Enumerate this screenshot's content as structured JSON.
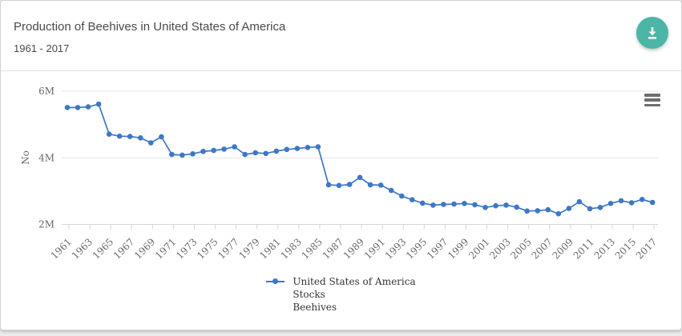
{
  "header": {
    "title": "Production of Beehives in United States of America",
    "subtitle": "1961 - 2017"
  },
  "legend": {
    "lines": [
      "United States of America",
      "Stocks",
      "Beehives"
    ]
  },
  "chart_data": {
    "type": "line",
    "title": "Production of Beehives in United States of America",
    "subtitle": "1961 - 2017",
    "ylabel": "No",
    "xlabel": "",
    "legend_position": "bottom",
    "grid": true,
    "marker": "circle",
    "ylim": [
      2000000,
      6200000
    ],
    "yticks": [
      {
        "value": 2000000,
        "label": "2M"
      },
      {
        "value": 4000000,
        "label": "4M"
      },
      {
        "value": 6000000,
        "label": "6M"
      }
    ],
    "x": [
      1961,
      1962,
      1963,
      1964,
      1965,
      1966,
      1967,
      1968,
      1969,
      1970,
      1971,
      1972,
      1973,
      1974,
      1975,
      1976,
      1977,
      1978,
      1979,
      1980,
      1981,
      1982,
      1983,
      1984,
      1985,
      1986,
      1987,
      1988,
      1989,
      1990,
      1991,
      1992,
      1993,
      1994,
      1995,
      1996,
      1997,
      1998,
      1999,
      2000,
      2001,
      2002,
      2003,
      2004,
      2005,
      2006,
      2007,
      2008,
      2009,
      2010,
      2011,
      2012,
      2013,
      2014,
      2015,
      2016,
      2017
    ],
    "xtick_labels": [
      "1961",
      "1963",
      "1965",
      "1967",
      "1969",
      "1971",
      "1973",
      "1975",
      "1977",
      "1979",
      "1981",
      "1983",
      "1985",
      "1987",
      "1989",
      "1991",
      "1993",
      "1995",
      "1997",
      "1999",
      "2001",
      "2003",
      "2005",
      "2007",
      "2009",
      "2011",
      "2013",
      "2015",
      "2017"
    ],
    "series": [
      {
        "name": "United States of America Stocks Beehives",
        "values": [
          5510000,
          5510000,
          5530000,
          5610000,
          4710000,
          4650000,
          4640000,
          4600000,
          4450000,
          4630000,
          4100000,
          4080000,
          4120000,
          4190000,
          4220000,
          4260000,
          4330000,
          4100000,
          4150000,
          4130000,
          4200000,
          4250000,
          4280000,
          4310000,
          4330000,
          3190000,
          3170000,
          3200000,
          3410000,
          3190000,
          3180000,
          3020000,
          2850000,
          2740000,
          2640000,
          2580000,
          2600000,
          2610000,
          2630000,
          2590000,
          2510000,
          2560000,
          2580000,
          2520000,
          2400000,
          2410000,
          2440000,
          2320000,
          2480000,
          2680000,
          2470000,
          2510000,
          2630000,
          2710000,
          2650000,
          2750000,
          2660000
        ]
      }
    ]
  },
  "colors": {
    "line": "#3e77c6",
    "grid": "#e7e7e7",
    "axis": "#d5d5d5",
    "tick_text": "#66686b",
    "download_button": "#4bb6a5",
    "menu_icon": "#6e6e6e"
  }
}
